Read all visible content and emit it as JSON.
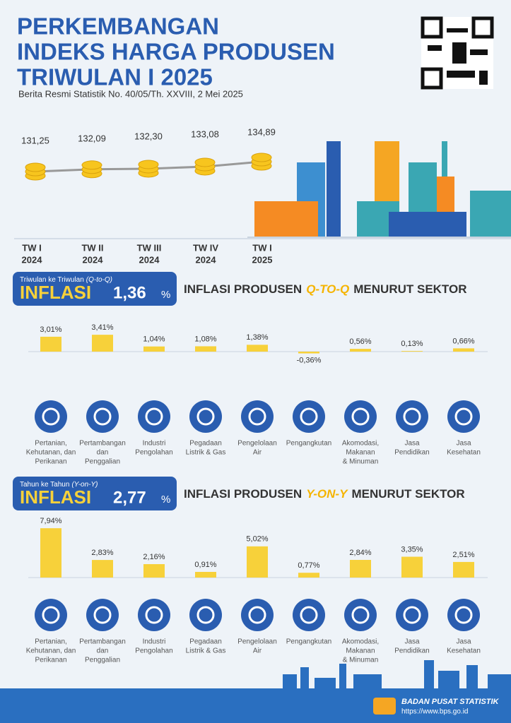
{
  "header": {
    "title_lines": [
      "PERKEMBANGAN",
      "INDEKS HARGA PRODUSEN",
      "TRIWULAN I 2025"
    ],
    "subtitle": "Berita Resmi Statistik No. 40/05/Th. XXVIII, 2 Mei 2025"
  },
  "trend": {
    "type": "line",
    "categories": [
      [
        "TW I",
        "2024"
      ],
      [
        "TW II",
        "2024"
      ],
      [
        "TW III",
        "2024"
      ],
      [
        "TW IV",
        "2024"
      ],
      [
        "TW I",
        "2025"
      ]
    ],
    "values": [
      131.25,
      132.09,
      132.3,
      133.08,
      134.89
    ],
    "value_labels": [
      "131,25",
      "132,09",
      "132,30",
      "133,08",
      "134,89"
    ]
  },
  "sectors": [
    [
      "Pertanian,",
      "Kehutanan, dan",
      "Perikanan"
    ],
    [
      "Pertambangan",
      "dan",
      "Penggalian"
    ],
    [
      "Industri",
      "Pengolahan"
    ],
    [
      "Pegadaan",
      "Listrik & Gas"
    ],
    [
      "Pengelolaan",
      "Air"
    ],
    [
      "Pengangkutan"
    ],
    [
      "Akomodasi,",
      "Makanan",
      "& Minuman"
    ],
    [
      "Jasa",
      "Pendidikan"
    ],
    [
      "Jasa",
      "Kesehatan"
    ]
  ],
  "qtq": {
    "box_caption": "Triwulan ke Triwulan",
    "box_caption_em": "(Q-to-Q)",
    "box_word": "INFLASI",
    "box_value": "1,36",
    "box_unit": "%",
    "heading": [
      "INFLASI PRODUSEN",
      "Q-TO-Q",
      "MENURUT SEKTOR"
    ],
    "chart": {
      "type": "bar",
      "values": [
        3.01,
        3.41,
        1.04,
        1.08,
        1.38,
        -0.36,
        0.56,
        0.13,
        0.66
      ],
      "value_labels": [
        "3,01%",
        "3,41%",
        "1,04%",
        "1,08%",
        "1,38%",
        "-0,36%",
        "0,56%",
        "0,13%",
        "0,66%"
      ],
      "color": "#f7d13a"
    }
  },
  "yoy": {
    "box_caption": "Tahun ke Tahun",
    "box_caption_em": "(Y-on-Y)",
    "box_word": "INFLASI",
    "box_value": "2,77",
    "box_unit": "%",
    "heading": [
      "INFLASI PRODUSEN",
      "Y-ON-Y",
      "MENURUT SEKTOR"
    ],
    "chart": {
      "type": "bar",
      "values": [
        7.94,
        2.83,
        2.16,
        0.91,
        5.02,
        0.77,
        2.84,
        3.35,
        2.51
      ],
      "value_labels": [
        "7,94%",
        "2,83%",
        "2,16%",
        "0,91%",
        "5,02%",
        "0,77%",
        "2,84%",
        "3,35%",
        "2,51%"
      ],
      "color": "#f7d13a"
    }
  },
  "footer": {
    "org": "BADAN PUSAT STATISTIK",
    "url": "https://www.bps.go.id"
  }
}
